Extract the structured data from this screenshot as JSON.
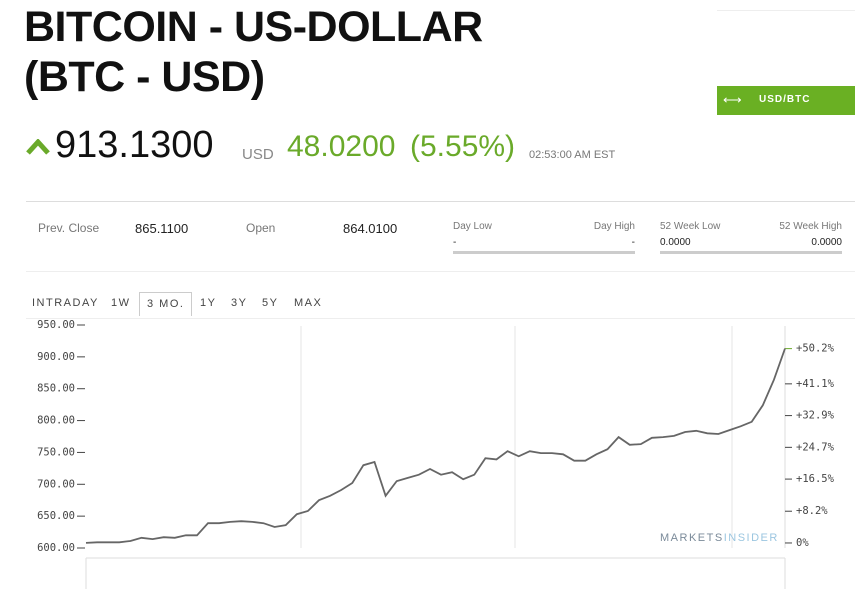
{
  "header": {
    "title_line1": "BITCOIN - US-DOLLAR",
    "title_line2": "(BTC - USD)",
    "price": "913.1300",
    "currency": "USD",
    "change": "48.0200",
    "change_pct": "(5.55%)",
    "time": "02:53:00 AM EST",
    "button": "USD/BTC"
  },
  "stats": [
    {
      "label": "Prev. Close",
      "value": "865.1100"
    },
    {
      "label": "Open",
      "value": "864.0100"
    }
  ],
  "ranges": [
    {
      "low_label": "Day Low",
      "high_label": "Day High",
      "low": "-",
      "high": "-"
    },
    {
      "low_label": "52 Week Low",
      "high_label": "52 Week High",
      "low": "0.0000",
      "high": "0.0000"
    }
  ],
  "tabs": [
    "INTRADAY",
    "1W",
    "3 MO.",
    "1Y",
    "3Y",
    "5Y",
    "MAX"
  ],
  "active_tab": 2,
  "watermark": {
    "bold": "MARKETS",
    "light": "INSIDER"
  },
  "chart_data": {
    "type": "line",
    "color": "#666666",
    "values": [
      608,
      609,
      609,
      609,
      611,
      616,
      614,
      617,
      616,
      620,
      620,
      639,
      639,
      641,
      642,
      641,
      639,
      633,
      636,
      653,
      658,
      675,
      682,
      691,
      702,
      730,
      735,
      682,
      705,
      710,
      715,
      724,
      715,
      719,
      708,
      715,
      741,
      739,
      752,
      744,
      752,
      749,
      749,
      747,
      737,
      737,
      747,
      755,
      774,
      762,
      763,
      773,
      774,
      776,
      782,
      784,
      780,
      779,
      785,
      791,
      798,
      824,
      864,
      913.13
    ],
    "ylim": [
      600,
      950
    ],
    "yticks": [
      {
        "value": 600,
        "label": "600.00"
      },
      {
        "value": 650,
        "label": "650.00"
      },
      {
        "value": 700,
        "label": "700.00"
      },
      {
        "value": 750,
        "label": "750.00"
      },
      {
        "value": 800,
        "label": "800.00"
      },
      {
        "value": 850,
        "label": "850.00"
      },
      {
        "value": 900,
        "label": "900.00"
      },
      {
        "value": 950,
        "label": "950.00"
      }
    ],
    "y2lim": [
      -1.3,
      56.3
    ],
    "y2ticks": [
      {
        "value": 0,
        "label": "0%"
      },
      {
        "value": 8.2,
        "label": "+8.2%"
      },
      {
        "value": 16.5,
        "label": "+16.5%"
      },
      {
        "value": 24.7,
        "label": "+24.7%"
      },
      {
        "value": 32.9,
        "label": "+32.9%"
      },
      {
        "value": 41.1,
        "label": "+41.1%"
      }
    ],
    "current": {
      "value": 50.2,
      "label": "+50.2%",
      "color": "#6aaa2a"
    }
  }
}
